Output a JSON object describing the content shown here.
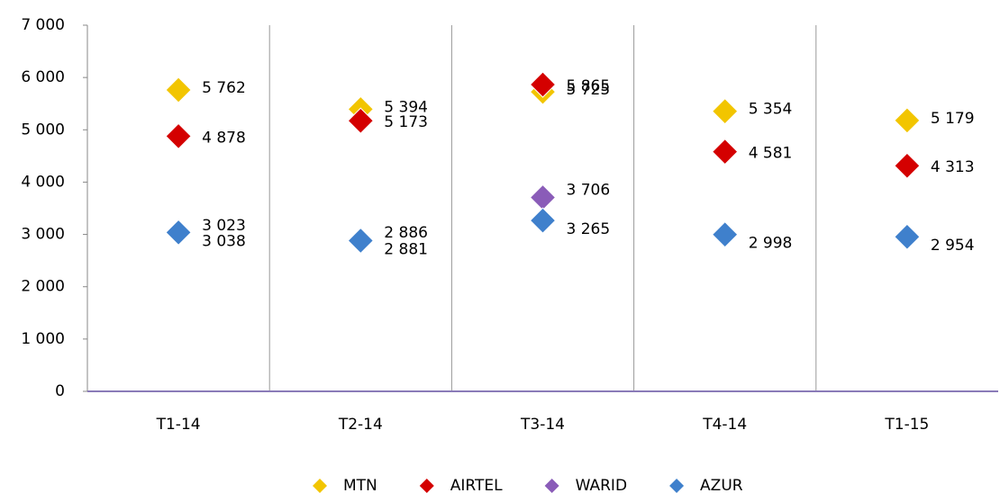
{
  "chart_data": {
    "type": "scatter",
    "categories": [
      "T1-14",
      "T2-14",
      "T3-14",
      "T4-14",
      "T1-15"
    ],
    "series": [
      {
        "name": "MTN",
        "color": "#f2c500",
        "values": [
          5762,
          5394,
          5725,
          5354,
          5179
        ],
        "value_labels": [
          "5 762",
          "5 394",
          "5 725",
          "5 354",
          "5 179"
        ]
      },
      {
        "name": "AIRTEL",
        "color": "#d40000",
        "values": [
          4878,
          5173,
          5865,
          4581,
          4313
        ],
        "value_labels": [
          "4 878",
          "5 173",
          "5 865",
          "4 581",
          "4 313"
        ]
      },
      {
        "name": "WARID",
        "color": "#8a5cb8",
        "values": [
          3023,
          2886,
          3706,
          null,
          null
        ],
        "value_labels": [
          "3 023",
          "2 886",
          "3 706",
          null,
          null
        ]
      },
      {
        "name": "AZUR",
        "color": "#3f80cc",
        "values": [
          3038,
          2881,
          3265,
          2998,
          2954
        ],
        "value_labels": [
          "3 038",
          "2 881",
          "3 265",
          "2 998",
          "2 954"
        ]
      }
    ],
    "ylim": [
      0,
      7000
    ],
    "yticks": [
      0,
      {
        "value": 1000,
        "label": "1 000"
      },
      {
        "value": 2000,
        "label": "2 000"
      },
      {
        "value": 3000,
        "label": "3 000"
      },
      {
        "value": 4000,
        "label": "4 000"
      },
      {
        "value": 5000,
        "label": "5 000"
      },
      {
        "value": 6000,
        "label": "6 000"
      },
      {
        "value": 7000,
        "label": "7 000"
      }
    ],
    "legend": "bottom"
  }
}
